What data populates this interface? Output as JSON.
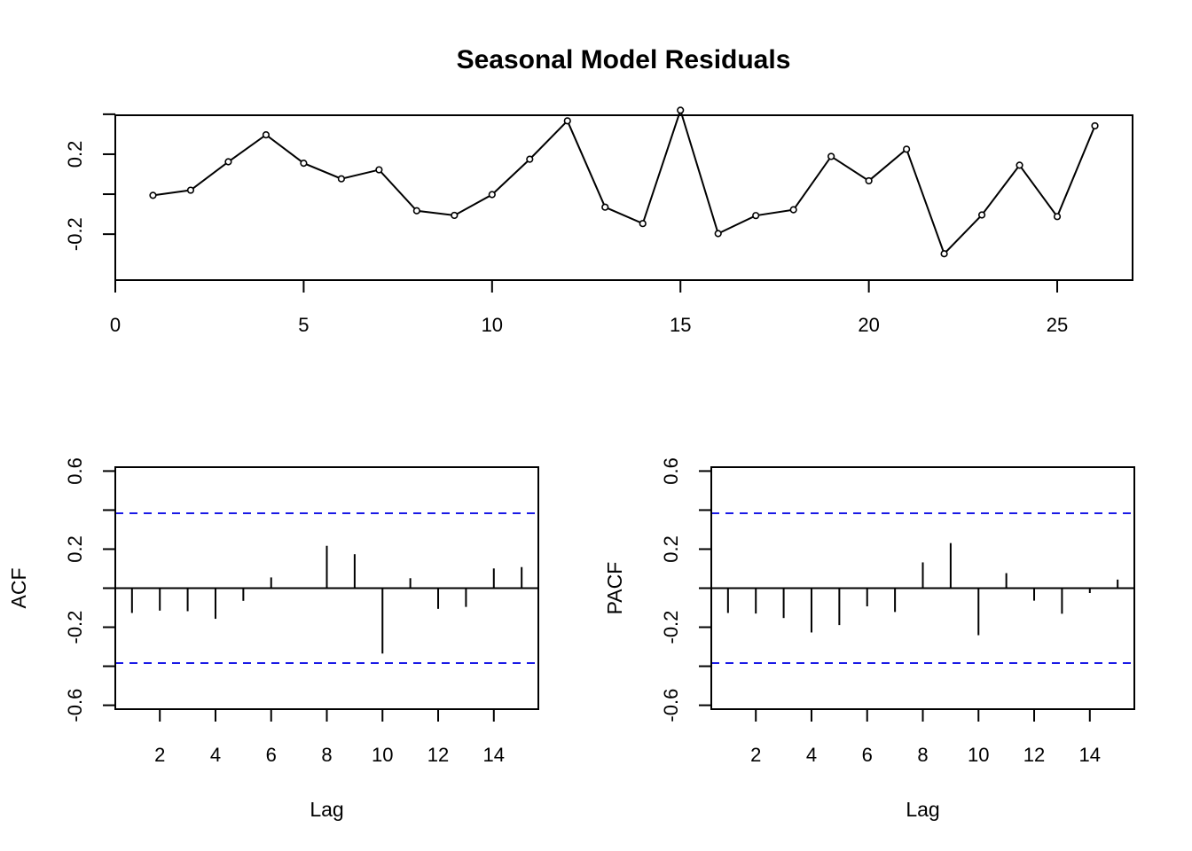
{
  "figure": {
    "title": "Seasonal Model Residuals"
  },
  "chart_data": [
    {
      "type": "line",
      "title": "Seasonal Model Residuals",
      "xlabel": "",
      "ylabel": "",
      "xlim": [
        0,
        27
      ],
      "ylim": [
        -0.43,
        0.395
      ],
      "x_ticks": [
        0,
        5,
        10,
        15,
        20,
        25
      ],
      "x_tick_labels": [
        "0",
        "5",
        "10",
        "15",
        "20",
        "25"
      ],
      "y_ticks": [
        -0.2,
        0.0,
        0.2
      ],
      "y_tick_labels": [
        "-0.2",
        "0.2"
      ],
      "y_minor_ticks": [
        -0.2,
        0.0,
        0.2,
        0.4
      ],
      "markers": "open-circle",
      "grid": false,
      "x": [
        1,
        2,
        3,
        4,
        5,
        6,
        7,
        8,
        9,
        10,
        11,
        12,
        13,
        14,
        15,
        16,
        17,
        18,
        19,
        20,
        21,
        22,
        23,
        24,
        25,
        26
      ],
      "y": [
        -0.006,
        0.02,
        0.162,
        0.297,
        0.155,
        0.077,
        0.122,
        -0.083,
        -0.106,
        -0.002,
        0.175,
        0.367,
        -0.065,
        -0.147,
        0.42,
        -0.197,
        -0.107,
        -0.078,
        0.189,
        0.067,
        0.225,
        -0.298,
        -0.104,
        0.145,
        -0.112,
        0.342
      ]
    },
    {
      "type": "bar",
      "style": "spikes",
      "xlabel": "Lag",
      "ylabel": "ACF",
      "xlim": [
        0.4,
        15.6
      ],
      "ylim": [
        -0.62,
        0.62
      ],
      "x_ticks": [
        2,
        4,
        6,
        8,
        10,
        12,
        14
      ],
      "x_tick_labels": [
        "2",
        "4",
        "6",
        "8",
        "10",
        "12",
        "14"
      ],
      "y_tick_labels": [
        "-0.6",
        "-0.2",
        "0.2",
        "0.6"
      ],
      "y_ticks": [
        -0.6,
        -0.2,
        0.2,
        0.6
      ],
      "y_minor_ticks": [
        -0.6,
        -0.4,
        -0.2,
        0.0,
        0.2,
        0.4,
        0.6
      ],
      "confidence_limit": 0.384,
      "confidence_color": "#1a1ae6",
      "lags": [
        1,
        2,
        3,
        4,
        5,
        6,
        7,
        8,
        9,
        10,
        11,
        12,
        13,
        14,
        15
      ],
      "values": [
        -0.127,
        -0.115,
        -0.118,
        -0.157,
        -0.065,
        0.055,
        -0.004,
        0.217,
        0.174,
        -0.335,
        0.051,
        -0.106,
        -0.096,
        0.101,
        0.108
      ]
    },
    {
      "type": "bar",
      "style": "spikes",
      "xlabel": "Lag",
      "ylabel": "PACF",
      "xlim": [
        0.4,
        15.6
      ],
      "ylim": [
        -0.62,
        0.62
      ],
      "x_ticks": [
        2,
        4,
        6,
        8,
        10,
        12,
        14
      ],
      "x_tick_labels": [
        "2",
        "4",
        "6",
        "8",
        "10",
        "12",
        "14"
      ],
      "y_tick_labels": [
        "-0.6",
        "-0.2",
        "0.2",
        "0.6"
      ],
      "y_ticks": [
        -0.6,
        -0.2,
        0.2,
        0.6
      ],
      "y_minor_ticks": [
        -0.6,
        -0.4,
        -0.2,
        0.0,
        0.2,
        0.4,
        0.6
      ],
      "confidence_limit": 0.384,
      "confidence_color": "#1a1ae6",
      "lags": [
        1,
        2,
        3,
        4,
        5,
        6,
        7,
        8,
        9,
        10,
        11,
        12,
        13,
        14,
        15
      ],
      "values": [
        -0.127,
        -0.13,
        -0.153,
        -0.227,
        -0.189,
        -0.093,
        -0.122,
        0.132,
        0.231,
        -0.241,
        0.077,
        -0.064,
        -0.131,
        -0.025,
        0.044
      ]
    }
  ]
}
